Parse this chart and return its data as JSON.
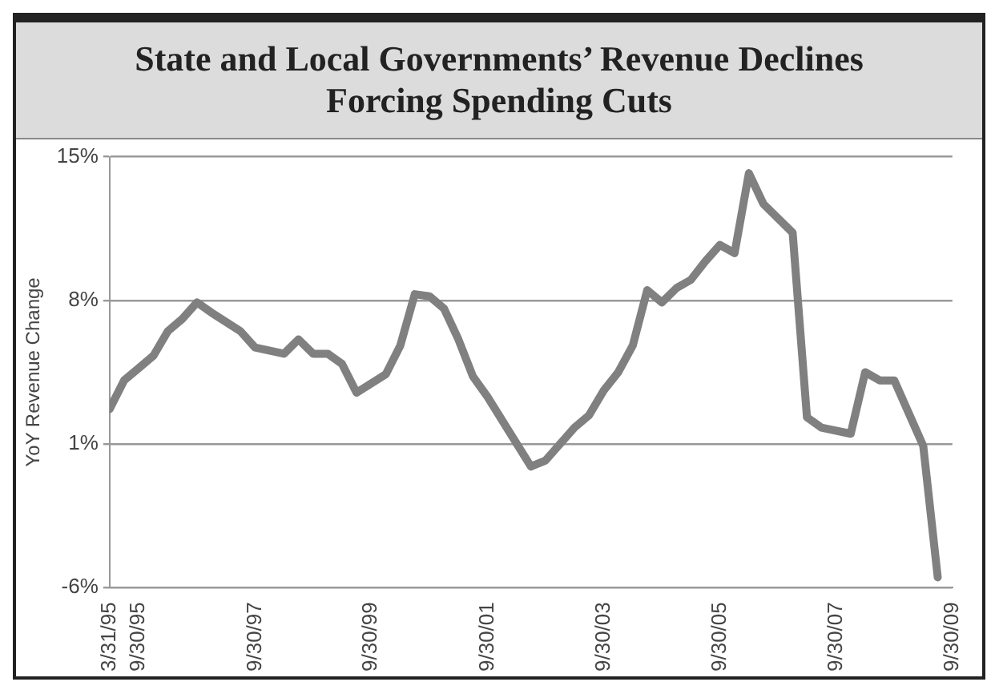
{
  "chart_data": {
    "type": "line",
    "title": "State and Local Governments’ Revenue Declines Forcing Spending Cuts",
    "ylabel": "YoY Revenue Change",
    "x": [
      "1995-03-31",
      "1995-06-30",
      "1995-09-30",
      "1995-12-31",
      "1996-03-31",
      "1996-06-30",
      "1996-09-30",
      "1996-12-31",
      "1997-06-30",
      "1997-09-30",
      "1998-03-31",
      "1998-06-30",
      "1998-09-30",
      "1998-12-31",
      "1999-03-31",
      "1999-06-30",
      "1999-12-31",
      "2000-03-31",
      "2000-06-30",
      "2000-09-30",
      "2000-12-31",
      "2001-03-31",
      "2001-06-30",
      "2001-09-30",
      "2002-06-30",
      "2002-09-30",
      "2003-03-31",
      "2003-06-30",
      "2003-09-30",
      "2003-12-31",
      "2004-03-31",
      "2004-06-30",
      "2004-09-30",
      "2004-12-31",
      "2005-03-31",
      "2005-06-30",
      "2005-09-30",
      "2005-12-31",
      "2006-03-31",
      "2006-06-30",
      "2006-12-31",
      "2007-03-31",
      "2007-06-30",
      "2007-12-31",
      "2008-03-31",
      "2008-06-30",
      "2008-09-30",
      "2009-03-31",
      "2009-06-30"
    ],
    "series": [
      {
        "color": "#808080",
        "values": [
          2.7,
          4.1,
          4.7,
          5.3,
          6.5,
          7.1,
          7.9,
          7.4,
          6.5,
          5.7,
          5.4,
          6.1,
          5.4,
          5.4,
          4.9,
          3.5,
          4.4,
          5.8,
          8.3,
          8.2,
          7.6,
          6.1,
          4.3,
          3.3,
          -0.1,
          0.2,
          1.8,
          2.4,
          3.6,
          4.5,
          5.8,
          8.5,
          7.9,
          8.6,
          9.0,
          9.9,
          10.7,
          10.3,
          14.2,
          12.7,
          11.3,
          2.3,
          1.8,
          1.5,
          4.5,
          4.1,
          4.1,
          0.9,
          -5.5
        ]
      }
    ],
    "xlim": [
      "1995-03-31",
      "2009-09-30"
    ],
    "xticks": [
      {
        "value": "1995-03-31",
        "label": "3/31/95"
      },
      {
        "value": "1995-09-30",
        "label": "9/30/95"
      },
      {
        "value": "1997-09-30",
        "label": "9/30/97"
      },
      {
        "value": "1999-09-30",
        "label": "9/30/99"
      },
      {
        "value": "2001-09-30",
        "label": "9/30/01"
      },
      {
        "value": "2003-09-30",
        "label": "9/30/03"
      },
      {
        "value": "2005-09-30",
        "label": "9/30/05"
      },
      {
        "value": "2007-09-30",
        "label": "9/30/07"
      },
      {
        "value": "2009-09-30",
        "label": "9/30/09"
      }
    ],
    "ylim": [
      -6,
      15
    ],
    "yticks": [
      {
        "value": -6,
        "label": "-6%"
      },
      {
        "value": 1,
        "label": "1%"
      },
      {
        "value": 8,
        "label": "8%"
      },
      {
        "value": 15,
        "label": "15%"
      }
    ],
    "grid": "y",
    "legend": false,
    "marker": "none",
    "line_style": "solid"
  }
}
